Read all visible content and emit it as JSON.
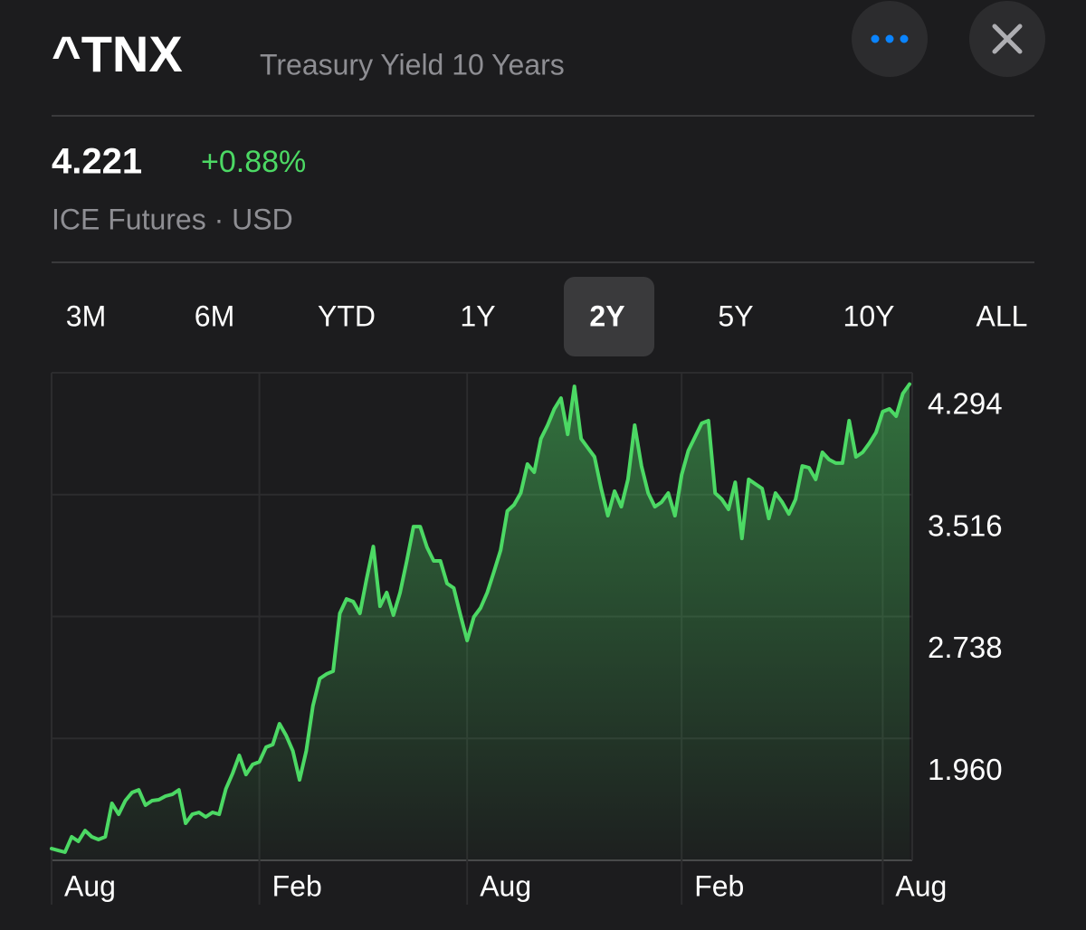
{
  "header": {
    "symbol": "^TNX",
    "name": "Treasury Yield 10 Years"
  },
  "quote": {
    "price": "4.221",
    "change": "+0.88%",
    "exchange": "ICE Futures · USD"
  },
  "tabs": [
    "3M",
    "6M",
    "YTD",
    "1Y",
    "2Y",
    "5Y",
    "10Y",
    "ALL"
  ],
  "selected_tab": "2Y",
  "chart_data": {
    "type": "area",
    "color": "#4cd964",
    "values": [
      1.257,
      1.245,
      1.234,
      1.332,
      1.303,
      1.372,
      1.332,
      1.315,
      1.332,
      1.546,
      1.476,
      1.563,
      1.615,
      1.632,
      1.534,
      1.563,
      1.569,
      1.592,
      1.603,
      1.632,
      1.419,
      1.476,
      1.488,
      1.459,
      1.488,
      1.476,
      1.638,
      1.736,
      1.852,
      1.73,
      1.794,
      1.811,
      1.904,
      1.921,
      2.054,
      1.979,
      1.88,
      1.696,
      1.88,
      2.169,
      2.342,
      2.371,
      2.389,
      2.758,
      2.85,
      2.833,
      2.758,
      2.978,
      3.185,
      2.804,
      2.891,
      2.747,
      2.891,
      3.093,
      3.312,
      3.312,
      3.18,
      3.093,
      3.093,
      2.949,
      2.92,
      2.747,
      2.585,
      2.735,
      2.793,
      2.891,
      3.024,
      3.162,
      3.411,
      3.451,
      3.526,
      3.711,
      3.659,
      3.873,
      3.959,
      4.063,
      4.132,
      3.901,
      4.207,
      3.873,
      3.815,
      3.757,
      3.555,
      3.382,
      3.538,
      3.439,
      3.613,
      3.959,
      3.699,
      3.526,
      3.439,
      3.468,
      3.526,
      3.382,
      3.642,
      3.797,
      3.884,
      3.971,
      3.988,
      3.526,
      3.486,
      3.422,
      3.595,
      3.237,
      3.613,
      3.584,
      3.555,
      3.364,
      3.526,
      3.468,
      3.393,
      3.486,
      3.699,
      3.688,
      3.613,
      3.786,
      3.74,
      3.717,
      3.717,
      3.988,
      3.757,
      3.786,
      3.844,
      3.913,
      4.046,
      4.063,
      4.017,
      4.161,
      4.221
    ],
    "xlim": [
      0,
      128
    ],
    "xticks": [
      {
        "value": 0,
        "label": "Aug"
      },
      {
        "value": 31,
        "label": "Feb"
      },
      {
        "value": 62,
        "label": "Aug"
      },
      {
        "value": 94,
        "label": "Feb"
      },
      {
        "value": 124,
        "label": "Aug"
      }
    ],
    "ylim": [
      1.182,
      4.294
    ],
    "yticks": [
      {
        "value": 1.96,
        "label": "1.960"
      },
      2.738,
      3.516,
      4.294
    ],
    "grid": true
  }
}
